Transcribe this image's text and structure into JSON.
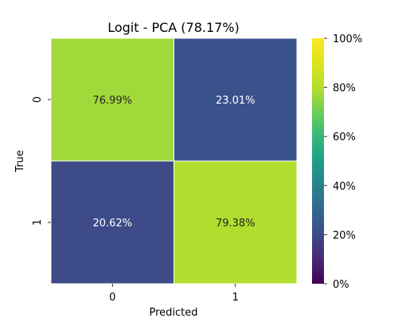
{
  "chart_data": {
    "type": "heatmap",
    "title": "Logit - PCA (78.17%)",
    "xlabel": "Predicted",
    "ylabel": "True",
    "x_categories": [
      "0",
      "1"
    ],
    "y_categories": [
      "0",
      "1"
    ],
    "values": [
      [
        76.99,
        23.01
      ],
      [
        20.62,
        79.38
      ]
    ],
    "cell_labels": [
      [
        "76.99%",
        "23.01%"
      ],
      [
        "20.62%",
        "79.38%"
      ]
    ],
    "colorbar": {
      "min": 0,
      "max": 100,
      "colormap": "viridis",
      "ticks": [
        {
          "value": 0,
          "label": "0%"
        },
        {
          "value": 20,
          "label": "20%"
        },
        {
          "value": 40,
          "label": "40%"
        },
        {
          "value": 60,
          "label": "60%"
        },
        {
          "value": 80,
          "label": "80%"
        },
        {
          "value": 100,
          "label": "100%"
        }
      ]
    },
    "grid": true
  }
}
